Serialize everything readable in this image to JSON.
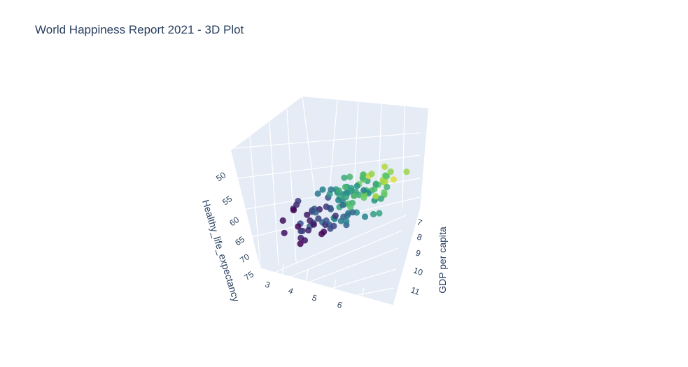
{
  "chart_data": {
    "type": "scatter",
    "title": "World Happiness Report 2021 - 3D Plot",
    "x_axis": {
      "label": "GDP per capita",
      "ticks": [
        "7",
        "8",
        "9",
        "10",
        "11"
      ]
    },
    "y_axis": {
      "label": "Healthy_life_expectancy",
      "ticks": [
        "50",
        "55",
        "60",
        "65",
        "70",
        "75"
      ]
    },
    "z_axis": {
      "label": "",
      "ticks": [
        "3",
        "4",
        "5",
        "6"
      ]
    },
    "colorscale": [
      "#440154",
      "#3b528b",
      "#21918c",
      "#5ec962",
      "#fde725"
    ],
    "background": "#e5ecf6",
    "grid": true
  },
  "points": [
    {
      "c": 0.95
    },
    {
      "c": 0.55
    },
    {
      "c": 0.62
    },
    {
      "c": 0.7
    },
    {
      "c": 0.8
    },
    {
      "c": 0.75
    },
    {
      "c": 0.6
    },
    {
      "c": 0.52
    },
    {
      "c": 0.83
    },
    {
      "c": 0.72
    },
    {
      "c": 0.66
    },
    {
      "c": 0.58
    },
    {
      "c": 0.78
    },
    {
      "c": 0.85
    },
    {
      "c": 0.9
    },
    {
      "c": 0.68
    },
    {
      "c": 0.5
    },
    {
      "c": 0.45
    },
    {
      "c": 0.4
    },
    {
      "c": 0.62
    },
    {
      "c": 0.55
    },
    {
      "c": 0.3
    },
    {
      "c": 0.35
    },
    {
      "c": 0.48
    },
    {
      "c": 0.6
    },
    {
      "c": 0.72
    },
    {
      "c": 0.82
    },
    {
      "c": 0.88
    },
    {
      "c": 0.92
    },
    {
      "c": 0.76
    },
    {
      "c": 0.65
    },
    {
      "c": 0.7
    },
    {
      "c": 0.8
    },
    {
      "c": 0.86
    },
    {
      "c": 0.84
    },
    {
      "c": 0.74
    },
    {
      "c": 0.64
    },
    {
      "c": 0.56
    },
    {
      "c": 0.44
    },
    {
      "c": 0.36
    },
    {
      "c": 0.25
    },
    {
      "c": 0.2
    },
    {
      "c": 0.28
    },
    {
      "c": 0.38
    },
    {
      "c": 0.46
    },
    {
      "c": 0.54
    },
    {
      "c": 0.63
    },
    {
      "c": 0.71
    },
    {
      "c": 0.79
    },
    {
      "c": 0.68
    },
    {
      "c": 0.58
    },
    {
      "c": 0.49
    },
    {
      "c": 0.41
    },
    {
      "c": 0.33
    },
    {
      "c": 0.22
    },
    {
      "c": 0.15
    },
    {
      "c": 0.12
    },
    {
      "c": 0.18
    },
    {
      "c": 0.27
    },
    {
      "c": 0.37
    },
    {
      "c": 0.47
    },
    {
      "c": 0.57
    },
    {
      "c": 0.67
    },
    {
      "c": 0.77
    },
    {
      "c": 0.73
    },
    {
      "c": 0.61
    },
    {
      "c": 0.51
    },
    {
      "c": 0.42
    },
    {
      "c": 0.31
    },
    {
      "c": 0.24
    },
    {
      "c": 0.1
    },
    {
      "c": 0.08
    },
    {
      "c": 0.14
    },
    {
      "c": 0.23
    },
    {
      "c": 0.34
    },
    {
      "c": 0.43
    },
    {
      "c": 0.53
    },
    {
      "c": 0.63
    },
    {
      "c": 0.59
    },
    {
      "c": 0.39
    },
    {
      "c": 0.29
    },
    {
      "c": 0.19
    },
    {
      "c": 0.05
    },
    {
      "c": 0.03
    },
    {
      "c": 0.06
    },
    {
      "c": 0.16
    },
    {
      "c": 0.26
    },
    {
      "c": 0.32
    },
    {
      "c": 0.44
    },
    {
      "c": 0.5
    },
    {
      "c": 0.66
    },
    {
      "c": 0.58
    },
    {
      "c": 0.35
    },
    {
      "c": 0.21
    },
    {
      "c": 0.09
    },
    {
      "c": 0.02
    },
    {
      "c": 0.04
    },
    {
      "c": 0.01
    },
    {
      "c": 0.11
    },
    {
      "c": 0.17
    },
    {
      "c": 0.3
    },
    {
      "c": 0.4
    },
    {
      "c": 0.52
    },
    {
      "c": 0.62
    },
    {
      "c": 0.7
    },
    {
      "c": 0.78
    },
    {
      "c": 0.86
    },
    {
      "c": 0.74
    },
    {
      "c": 0.6
    },
    {
      "c": 0.46
    },
    {
      "c": 0.33
    },
    {
      "c": 0.13
    },
    {
      "c": 0.07
    },
    {
      "c": 0.02
    },
    {
      "c": 0.01
    },
    {
      "c": 0.05
    },
    {
      "c": 0.2
    },
    {
      "c": 0.44
    },
    {
      "c": 0.56
    },
    {
      "c": 0.69
    }
  ]
}
